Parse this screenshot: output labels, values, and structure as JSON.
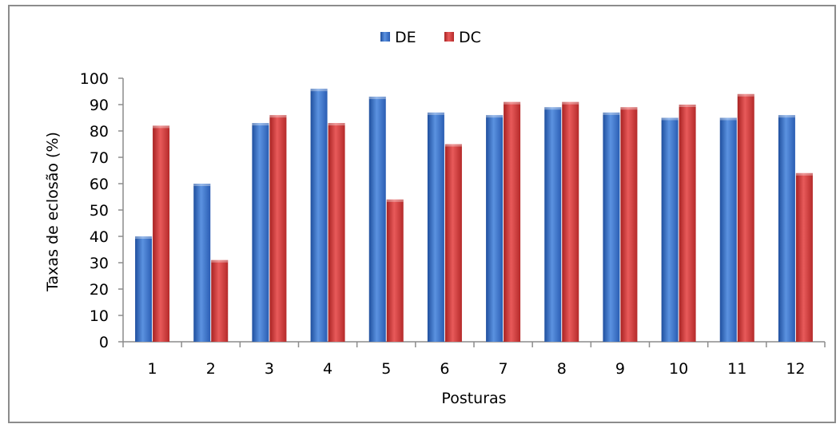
{
  "chart_data": {
    "type": "bar",
    "title": "",
    "xlabel": "Posturas",
    "ylabel": "Taxas de eclosão (%)",
    "ylim": [
      0,
      100
    ],
    "yticks": [
      0,
      10,
      20,
      30,
      40,
      50,
      60,
      70,
      80,
      90,
      100
    ],
    "grid": false,
    "legend_position": "top-center",
    "categories": [
      "1",
      "2",
      "3",
      "4",
      "5",
      "6",
      "7",
      "8",
      "9",
      "10",
      "11",
      "12"
    ],
    "series": [
      {
        "name": "DE",
        "color": "#3a6fc4",
        "values": [
          40,
          60,
          83,
          96,
          93,
          87,
          86,
          89,
          87,
          85,
          85,
          86
        ]
      },
      {
        "name": "DC",
        "color": "#d23b3b",
        "values": [
          82,
          31,
          86,
          83,
          54,
          75,
          91,
          91,
          89,
          90,
          94,
          64
        ]
      }
    ]
  }
}
